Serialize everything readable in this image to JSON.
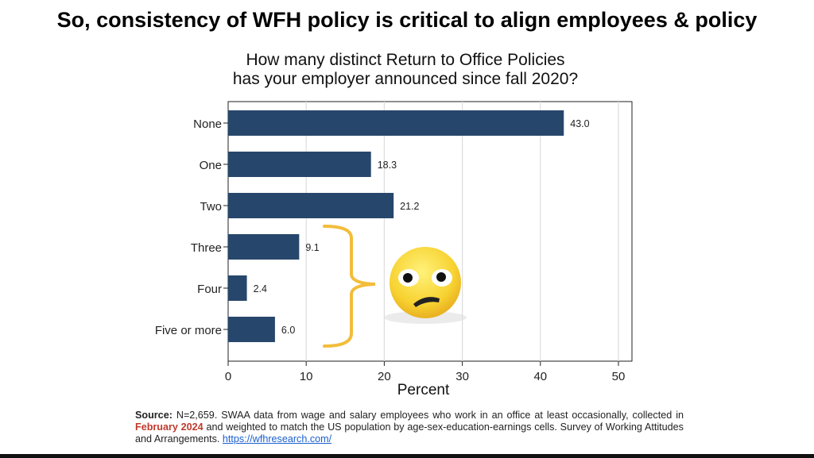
{
  "slide_title": "So, consistency of WFH policy is critical to align employees & policy",
  "chart_data": {
    "type": "bar",
    "orientation": "horizontal",
    "title_lines": [
      "How many distinct Return to Office Policies",
      "has your employer announced since fall 2020?"
    ],
    "categories": [
      "None",
      "One",
      "Two",
      "Three",
      "Four",
      "Five or more"
    ],
    "values": [
      43.0,
      18.3,
      21.2,
      9.1,
      2.4,
      6.0
    ],
    "value_labels": [
      "43.0",
      "18.3",
      "21.2",
      "9.1",
      "2.4",
      "6.0"
    ],
    "xlabel": "Percent",
    "xlim": [
      0,
      50
    ],
    "xticks": [
      "0",
      "10",
      "20",
      "30",
      "40",
      "50"
    ],
    "grid": true,
    "bar_color": "#27466b",
    "annotation": "brace grouping Three, Four, Five or more with a worried face emoji",
    "brace_color": "#f2bd3a"
  },
  "source": {
    "label": "Source:",
    "text1": " N=2,659. SWAA data from wage and salary employees who work in an office at least occasionally, collected in ",
    "highlight": "February 2024",
    "text2": " and weighted to match the US population by age-sex-education-earnings cells. Survey of Working Attitudes and Arrangements. ",
    "link": "https://wfhresearch.com/"
  }
}
